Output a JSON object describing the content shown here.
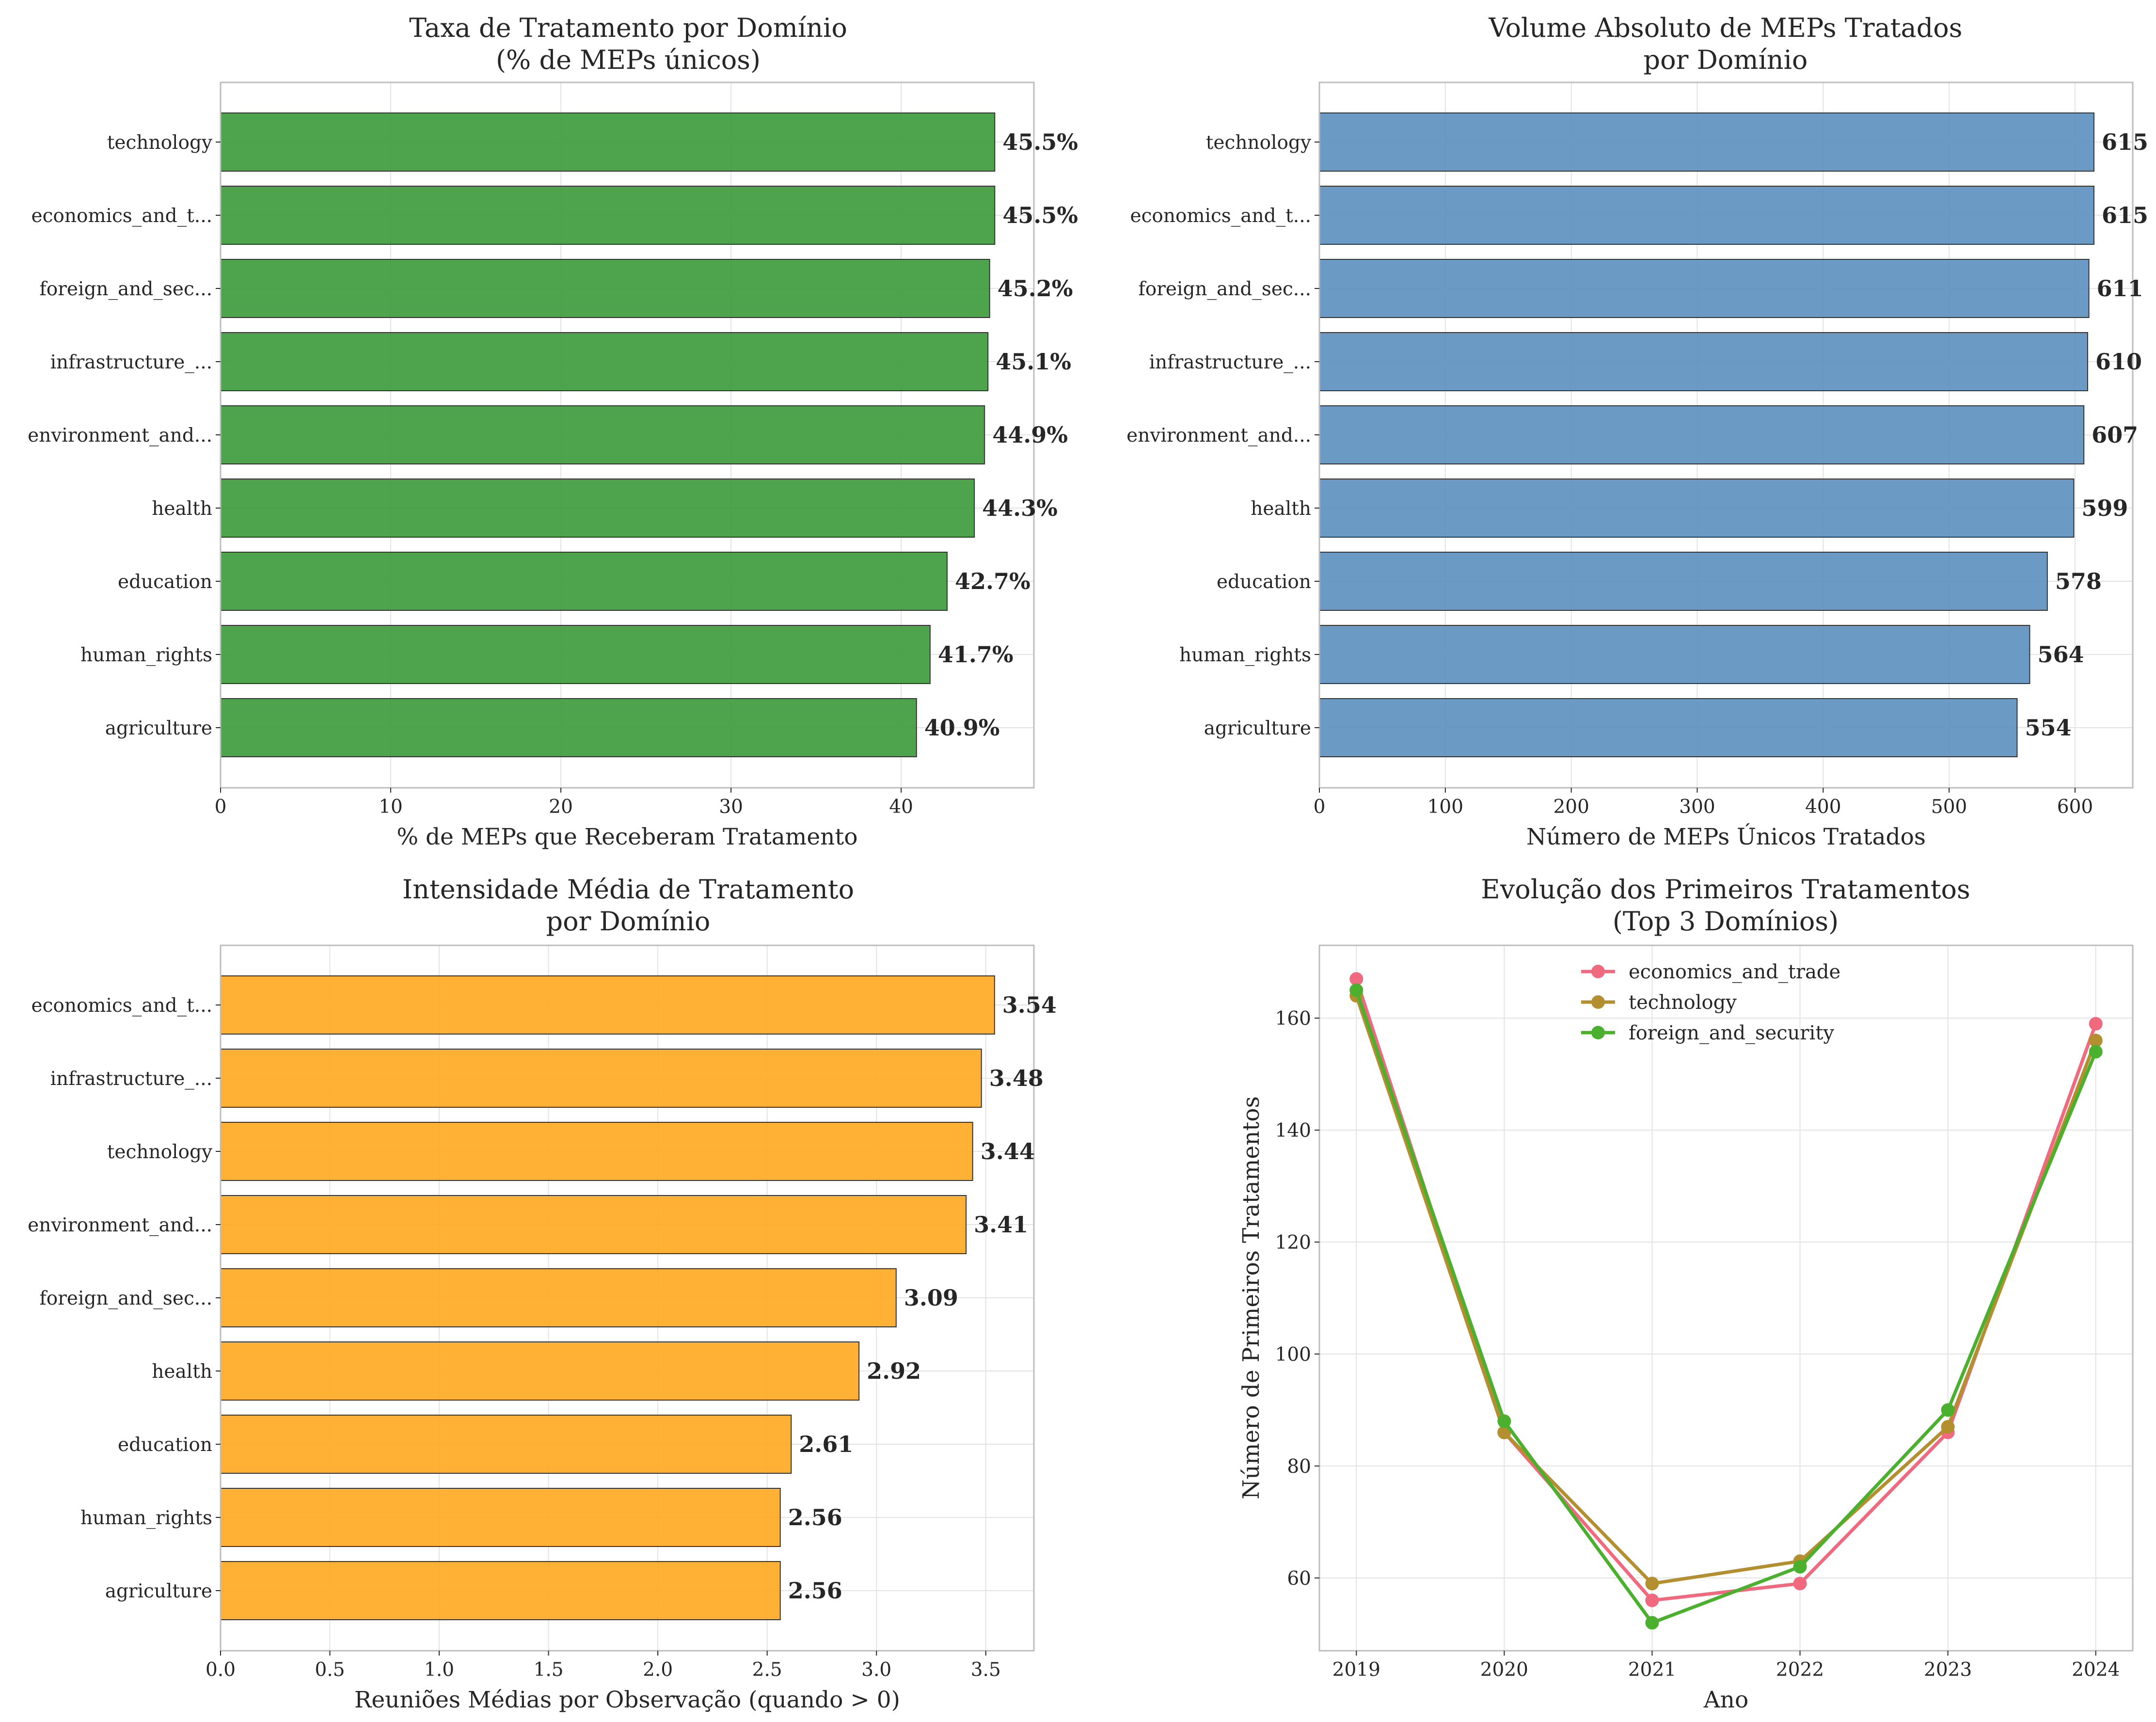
{
  "panels": [
    {
      "id": "rate",
      "title_line1": "Taxa de Tratamento por Domínio",
      "title_line2": "(% de MEPs únicos)",
      "xlabel": "% de MEPs que Receberam Tratamento",
      "color": "#3a9a3a",
      "xticks": [
        "0",
        "10",
        "20",
        "30",
        "40"
      ]
    },
    {
      "id": "volume",
      "title_line1": "Volume Absoluto de MEPs Tratados",
      "title_line2": "por Domínio",
      "xlabel": "Número de MEPs Únicos Tratados",
      "color": "#5b8fbf",
      "xticks": [
        "0",
        "100",
        "200",
        "300",
        "400",
        "500",
        "600"
      ]
    },
    {
      "id": "intensity",
      "title_line1": "Intensidade Média de Tratamento",
      "title_line2": "por Domínio",
      "xlabel": "Reuniões Médias por Observação (quando > 0)",
      "color": "#ffa91f",
      "xticks": [
        "0.0",
        "0.5",
        "1.0",
        "1.5",
        "2.0",
        "2.5",
        "3.0",
        "3.5"
      ]
    },
    {
      "id": "evolution",
      "title_line1": "Evolução dos Primeiros Tratamentos",
      "title_line2": "(Top 3 Domínios)",
      "xlabel": "Ano",
      "ylabel": "Número de Primeiros Tratamentos",
      "xticks": [
        "2019",
        "2020",
        "2021",
        "2022",
        "2023",
        "2024"
      ],
      "yticks": [
        "60",
        "80",
        "100",
        "120",
        "140",
        "160"
      ]
    }
  ],
  "chart_data": [
    {
      "type": "bar",
      "orientation": "horizontal",
      "title": "Taxa de Tratamento por Domínio (% de MEPs únicos)",
      "xlabel": "% de MEPs que Receberam Tratamento",
      "xlim": [
        0,
        47.8
      ],
      "categories": [
        "technology",
        "economics_and_t...",
        "foreign_and_sec...",
        "infrastructure_...",
        "environment_and...",
        "health",
        "education",
        "human_rights",
        "agriculture"
      ],
      "values": [
        45.5,
        45.5,
        45.2,
        45.1,
        44.9,
        44.3,
        42.7,
        41.7,
        40.9
      ],
      "labels": [
        "45.5%",
        "45.5%",
        "45.2%",
        "45.1%",
        "44.9%",
        "44.3%",
        "42.7%",
        "41.7%",
        "40.9%"
      ],
      "grid": true
    },
    {
      "type": "bar",
      "orientation": "horizontal",
      "title": "Volume Absoluto de MEPs Tratados por Domínio",
      "xlabel": "Número de MEPs Únicos Tratados",
      "xlim": [
        0,
        645.8
      ],
      "categories": [
        "technology",
        "economics_and_t...",
        "foreign_and_sec...",
        "infrastructure_...",
        "environment_and...",
        "health",
        "education",
        "human_rights",
        "agriculture"
      ],
      "values": [
        615,
        615,
        611,
        610,
        607,
        599,
        578,
        564,
        554
      ],
      "labels": [
        "615",
        "615",
        "611",
        "610",
        "607",
        "599",
        "578",
        "564",
        "554"
      ],
      "grid": true
    },
    {
      "type": "bar",
      "orientation": "horizontal",
      "title": "Intensidade Média de Tratamento por Domínio",
      "xlabel": "Reuniões Médias por Observação (quando > 0)",
      "xlim": [
        0,
        3.72
      ],
      "categories": [
        "economics_and_t...",
        "infrastructure_...",
        "technology",
        "environment_and...",
        "foreign_and_sec...",
        "health",
        "education",
        "human_rights",
        "agriculture"
      ],
      "values": [
        3.54,
        3.48,
        3.44,
        3.41,
        3.09,
        2.92,
        2.61,
        2.56,
        2.56
      ],
      "labels": [
        "3.54",
        "3.48",
        "3.44",
        "3.41",
        "3.09",
        "2.92",
        "2.61",
        "2.56",
        "2.56"
      ],
      "grid": true
    },
    {
      "type": "line",
      "title": "Evolução dos Primeiros Tratamentos (Top 3 Domínios)",
      "xlabel": "Ano",
      "ylabel": "Número de Primeiros Tratamentos",
      "x": [
        2019,
        2020,
        2021,
        2022,
        2023,
        2024
      ],
      "xlim": [
        2018.75,
        2024.25
      ],
      "ylim": [
        47,
        173
      ],
      "legend": "upper-center",
      "grid": true,
      "series": [
        {
          "name": "economics_and_trade",
          "color": "#f0697f",
          "values": [
            167,
            86,
            56,
            59,
            86,
            159
          ]
        },
        {
          "name": "technology",
          "color": "#b38f2f",
          "values": [
            164,
            86,
            59,
            63,
            87,
            156
          ]
        },
        {
          "name": "foreign_and_security",
          "color": "#4ab02e",
          "values": [
            165,
            88,
            52,
            62,
            90,
            154
          ]
        }
      ]
    }
  ]
}
